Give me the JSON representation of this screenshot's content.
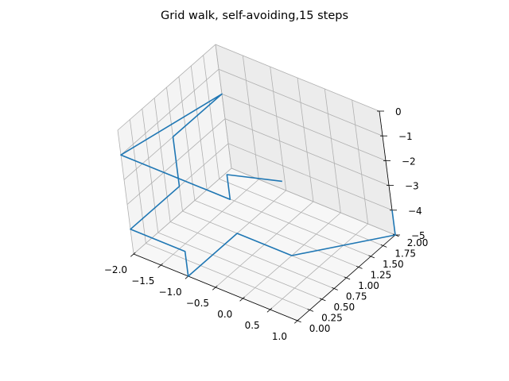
{
  "chart_data": {
    "type": "line3d",
    "title": "Grid walk, self-avoiding,15 steps",
    "xlabel": "",
    "ylabel": "",
    "zlabel": "",
    "grid": true,
    "xlim": [
      -2,
      1
    ],
    "ylim": [
      0,
      2
    ],
    "zlim": [
      -5,
      0
    ],
    "x_ticks": [
      -2,
      -1.5,
      -1,
      -0.5,
      0,
      0.5,
      1
    ],
    "x_tick_labels": [
      "−2.0",
      "−1.5",
      "−1.0",
      "−0.5",
      "0.0",
      "0.5",
      "1.0"
    ],
    "y_ticks": [
      0,
      0.25,
      0.5,
      0.75,
      1,
      1.25,
      1.5,
      1.75,
      2
    ],
    "y_tick_labels": [
      "0.00",
      "0.25",
      "0.50",
      "0.75",
      "1.00",
      "1.25",
      "1.50",
      "1.75",
      "2.00"
    ],
    "z_ticks": [
      -5,
      -4,
      -3,
      -2,
      -1,
      0
    ],
    "z_tick_labels": [
      "−5",
      "−4",
      "−3",
      "−2",
      "−1",
      "0"
    ],
    "series": [
      {
        "color": "#1f77b4",
        "points": [
          [
            1,
            2,
            -4
          ],
          [
            1,
            2,
            -5
          ],
          [
            0,
            1,
            -5
          ],
          [
            -1,
            1,
            -5
          ],
          [
            -1,
            0,
            -5
          ],
          [
            -1,
            0,
            -4
          ],
          [
            -2,
            0,
            -4
          ],
          [
            -2,
            1,
            -4
          ],
          [
            -2,
            1,
            -3
          ],
          [
            -2,
            1,
            -2
          ],
          [
            -2,
            2,
            -2
          ],
          [
            -2,
            0,
            -1
          ],
          [
            -1,
            0,
            -1
          ],
          [
            0,
            0,
            -1
          ],
          [
            0,
            0,
            0
          ],
          [
            0,
            1,
            -2
          ]
        ]
      }
    ]
  }
}
